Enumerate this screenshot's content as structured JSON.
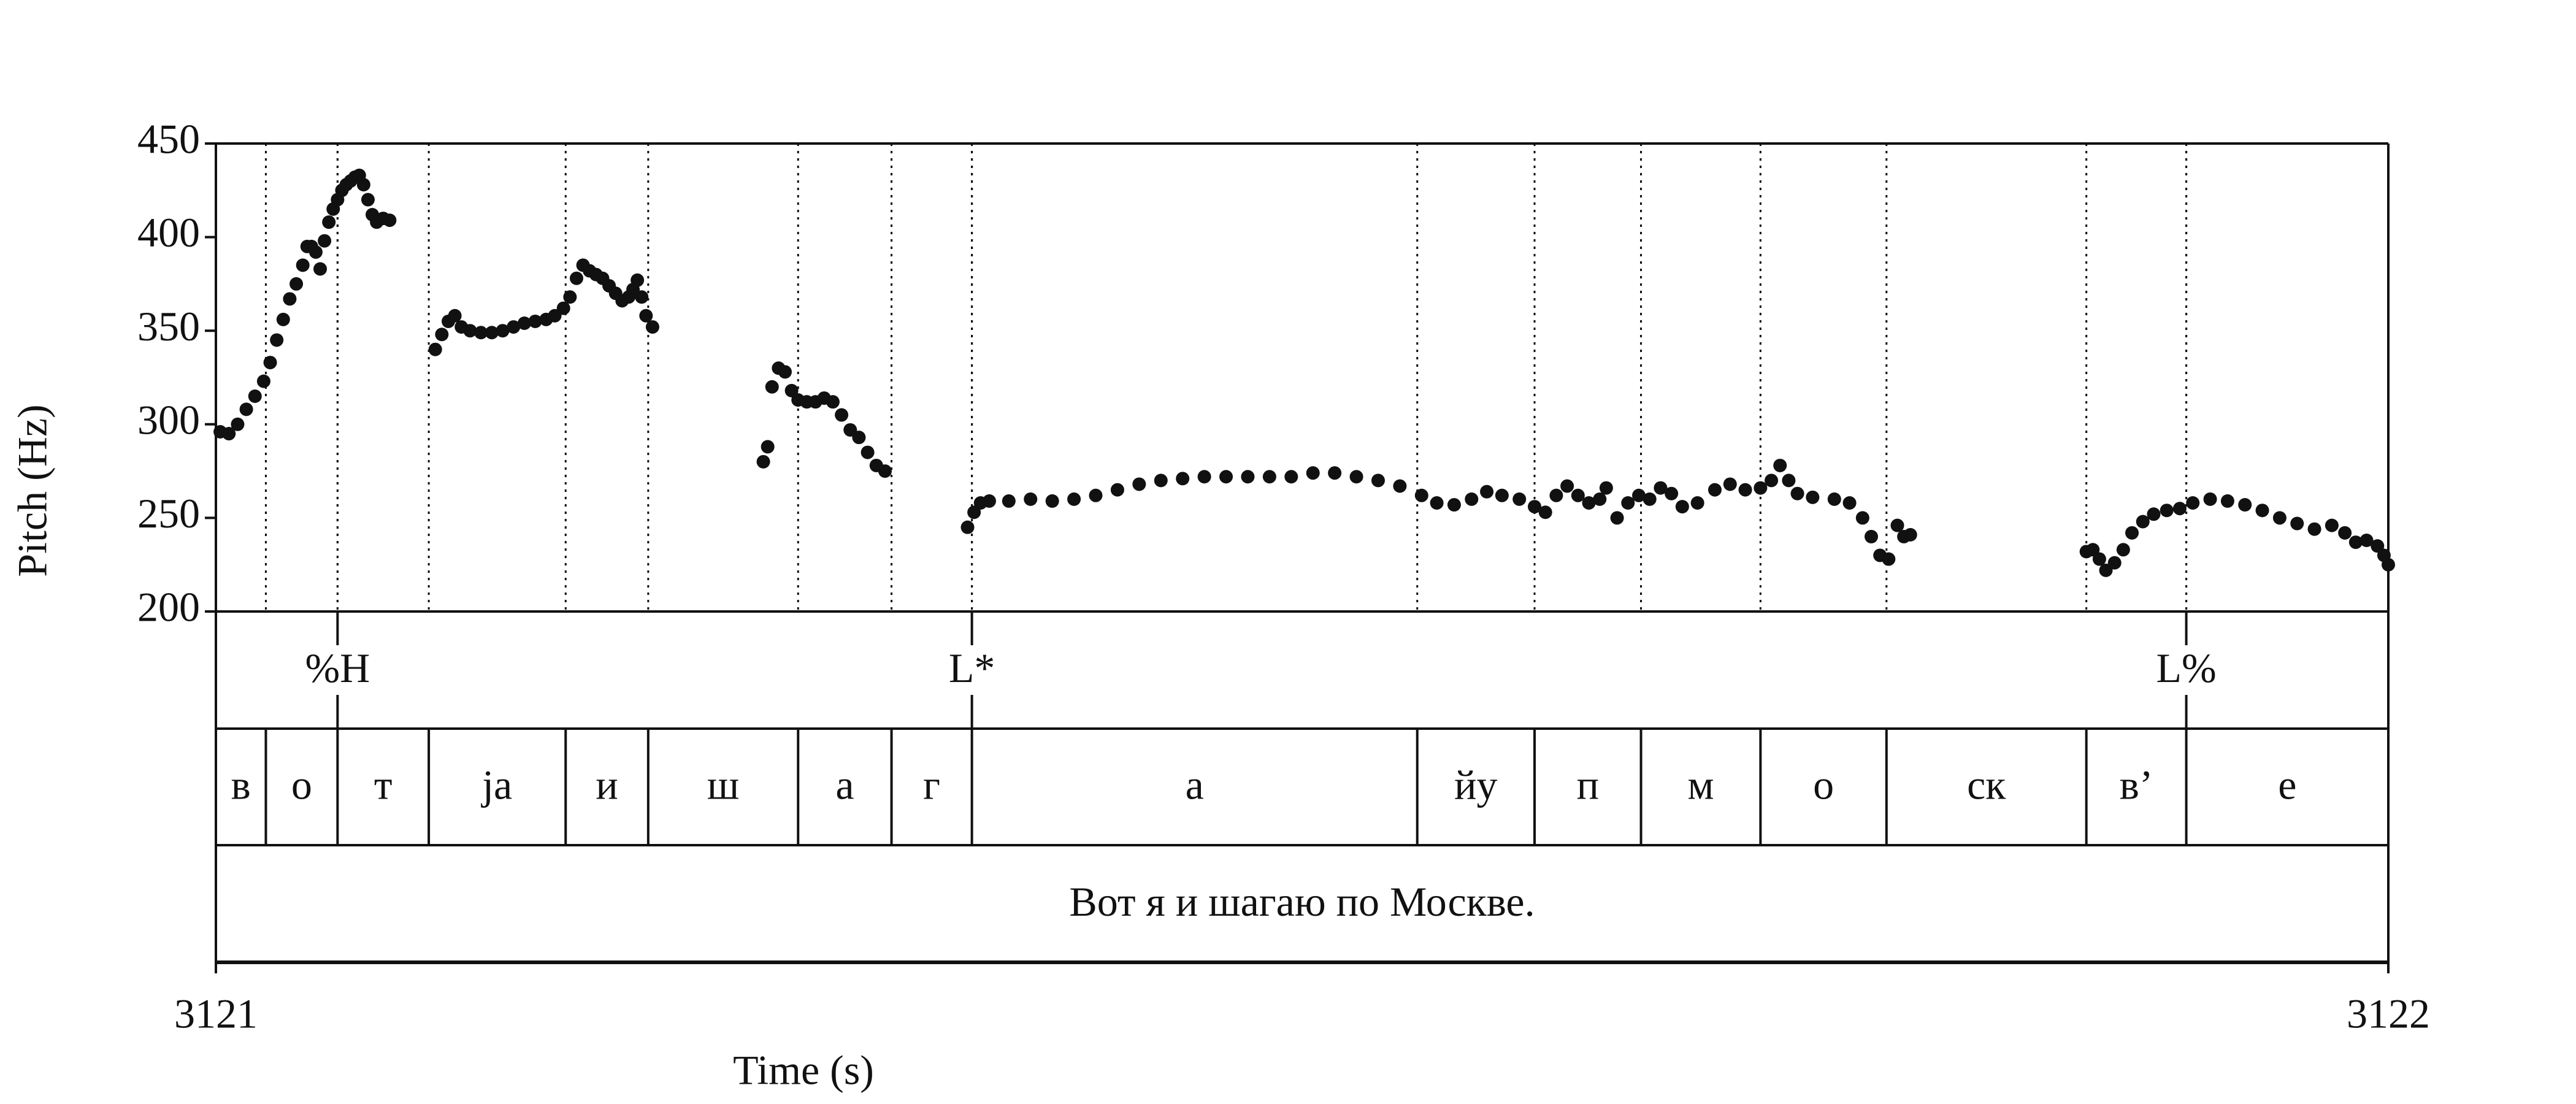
{
  "chart_data": {
    "type": "scatter",
    "xlabel": "Time (s)",
    "ylabel": "Pitch (Hz)",
    "xlim": [
      3121,
      3122
    ],
    "xticks": [
      3121,
      3122
    ],
    "ylim": [
      200,
      450
    ],
    "yticks": [
      200,
      250,
      300,
      350,
      400,
      450
    ],
    "color": "#111111",
    "x": [
      3121.002,
      3121.006,
      3121.01,
      3121.014,
      3121.018,
      3121.022,
      3121.025,
      3121.028,
      3121.031,
      3121.034,
      3121.037,
      3121.04,
      3121.042,
      3121.044,
      3121.046,
      3121.048,
      3121.05,
      3121.052,
      3121.054,
      3121.056,
      3121.058,
      3121.06,
      3121.062,
      3121.064,
      3121.066,
      3121.068,
      3121.07,
      3121.072,
      3121.074,
      3121.077,
      3121.08,
      3121.101,
      3121.104,
      3121.107,
      3121.11,
      3121.113,
      3121.117,
      3121.122,
      3121.127,
      3121.132,
      3121.137,
      3121.142,
      3121.147,
      3121.152,
      3121.156,
      3121.16,
      3121.163,
      3121.166,
      3121.169,
      3121.172,
      3121.175,
      3121.178,
      3121.181,
      3121.184,
      3121.187,
      3121.19,
      3121.192,
      3121.194,
      3121.196,
      3121.198,
      3121.201,
      3121.252,
      3121.254,
      3121.256,
      3121.259,
      3121.262,
      3121.265,
      3121.268,
      3121.272,
      3121.276,
      3121.28,
      3121.284,
      3121.288,
      3121.292,
      3121.296,
      3121.3,
      3121.304,
      3121.308,
      3121.346,
      3121.349,
      3121.352,
      3121.356,
      3121.365,
      3121.375,
      3121.385,
      3121.395,
      3121.405,
      3121.415,
      3121.425,
      3121.435,
      3121.445,
      3121.455,
      3121.465,
      3121.475,
      3121.485,
      3121.495,
      3121.505,
      3121.515,
      3121.525,
      3121.535,
      3121.545,
      3121.555,
      3121.562,
      3121.57,
      3121.578,
      3121.585,
      3121.592,
      3121.6,
      3121.607,
      3121.612,
      3121.617,
      3121.622,
      3121.627,
      3121.632,
      3121.637,
      3121.64,
      3121.645,
      3121.65,
      3121.655,
      3121.66,
      3121.665,
      3121.67,
      3121.675,
      3121.682,
      3121.69,
      3121.697,
      3121.704,
      3121.711,
      3121.716,
      3121.72,
      3121.724,
      3121.728,
      3121.735,
      3121.745,
      3121.752,
      3121.758,
      3121.762,
      3121.766,
      3121.77,
      3121.774,
      3121.777,
      3121.78,
      3121.861,
      3121.864,
      3121.867,
      3121.87,
      3121.874,
      3121.878,
      3121.882,
      3121.887,
      3121.892,
      3121.898,
      3121.904,
      3121.91,
      3121.918,
      3121.926,
      3121.934,
      3121.942,
      3121.95,
      3121.958,
      3121.966,
      3121.974,
      3121.98,
      3121.985,
      3121.99,
      3121.995,
      3121.998,
      3122.0
    ],
    "values": [
      296,
      295,
      300,
      308,
      315,
      323,
      333,
      345,
      356,
      367,
      375,
      385,
      395,
      395,
      392,
      383,
      398,
      408,
      415,
      420,
      425,
      428,
      430,
      432,
      433,
      428,
      420,
      412,
      408,
      410,
      409,
      340,
      348,
      355,
      358,
      352,
      350,
      349,
      349,
      350,
      352,
      354,
      355,
      356,
      358,
      362,
      368,
      378,
      385,
      382,
      380,
      378,
      374,
      370,
      366,
      368,
      372,
      377,
      368,
      358,
      352,
      280,
      288,
      320,
      330,
      328,
      318,
      313,
      312,
      312,
      314,
      312,
      305,
      297,
      293,
      285,
      278,
      275,
      245,
      253,
      258,
      259,
      259,
      260,
      259,
      260,
      262,
      265,
      268,
      270,
      271,
      272,
      272,
      272,
      272,
      272,
      274,
      274,
      272,
      270,
      267,
      262,
      258,
      257,
      260,
      264,
      262,
      260,
      256,
      253,
      262,
      267,
      262,
      258,
      260,
      266,
      250,
      258,
      262,
      260,
      266,
      263,
      256,
      258,
      265,
      268,
      265,
      266,
      270,
      278,
      270,
      263,
      261,
      260,
      258,
      250,
      240,
      230,
      228,
      246,
      240,
      241,
      232,
      233,
      228,
      222,
      226,
      233,
      242,
      248,
      252,
      254,
      255,
      258,
      260,
      259,
      257,
      254,
      250,
      247,
      244,
      246,
      242,
      237,
      238,
      235,
      230,
      225
    ],
    "tones": [
      {
        "time": 3121.056,
        "label": "%H"
      },
      {
        "time": 3121.348,
        "label": "L*"
      },
      {
        "time": 3121.907,
        "label": "L%"
      }
    ],
    "phone_boundaries": [
      3121.023,
      3121.056,
      3121.098,
      3121.161,
      3121.199,
      3121.268,
      3121.311,
      3121.348,
      3121.553,
      3121.607,
      3121.656,
      3121.711,
      3121.769,
      3121.861,
      3121.907
    ],
    "phones": [
      "в",
      "о",
      "т",
      "ja",
      "и",
      "ш",
      "а",
      "г",
      "а",
      "йу",
      "п",
      "м",
      "о",
      "ск",
      "в’",
      "е"
    ],
    "sentence": "Вот я и шагаю по Москве."
  }
}
